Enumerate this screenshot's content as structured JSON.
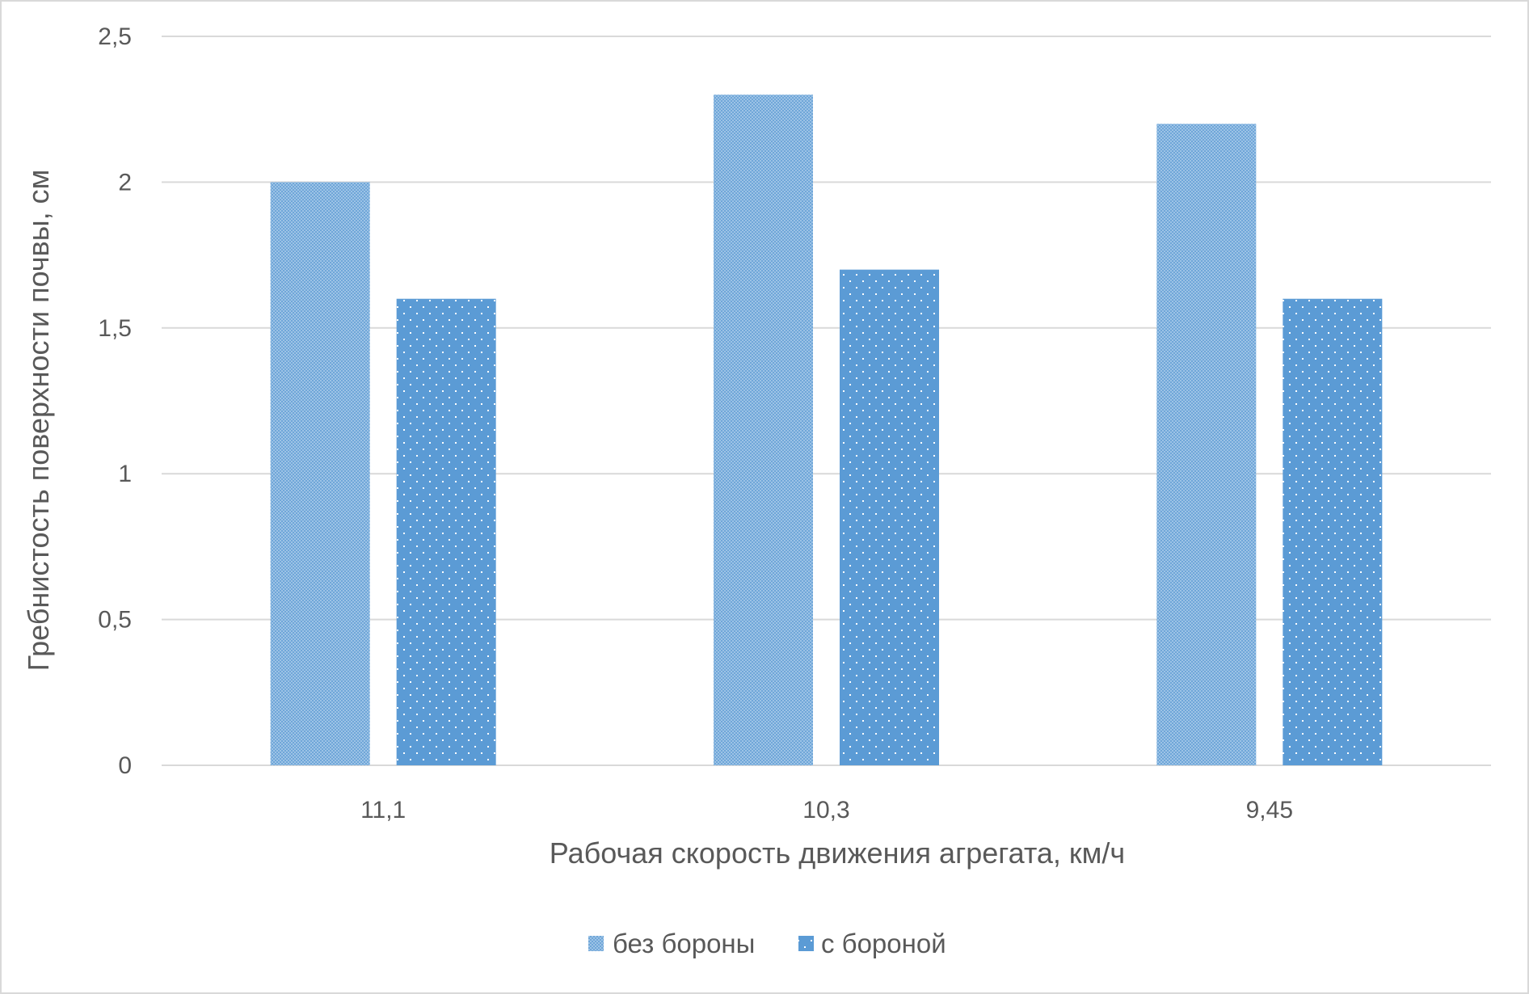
{
  "chart_data": {
    "type": "bar",
    "title": "",
    "xlabel": "Рабочая скорость движения агрегата, км/ч",
    "ylabel": "Гребнистость поверхности почвы, см",
    "categories": [
      "11,1",
      "10,3",
      "9,45"
    ],
    "series": [
      {
        "name": "без бороны",
        "values": [
          2.0,
          2.3,
          2.2
        ],
        "color": "#9DC3E6",
        "pattern": "checker"
      },
      {
        "name": "с бороной",
        "values": [
          1.6,
          1.7,
          1.6
        ],
        "color": "#5B9BD5",
        "pattern": "dots"
      }
    ],
    "ylim": [
      0,
      2.5
    ],
    "yticks": [
      0,
      0.5,
      1,
      1.5,
      2,
      2.5
    ],
    "ytick_labels": [
      "0",
      "0,5",
      "1",
      "1,5",
      "2",
      "2,5"
    ],
    "grid": true,
    "legend_position": "bottom"
  },
  "colors": {
    "gridline": "#D9D9D9",
    "text": "#595959",
    "border": "#D9D9D9"
  }
}
